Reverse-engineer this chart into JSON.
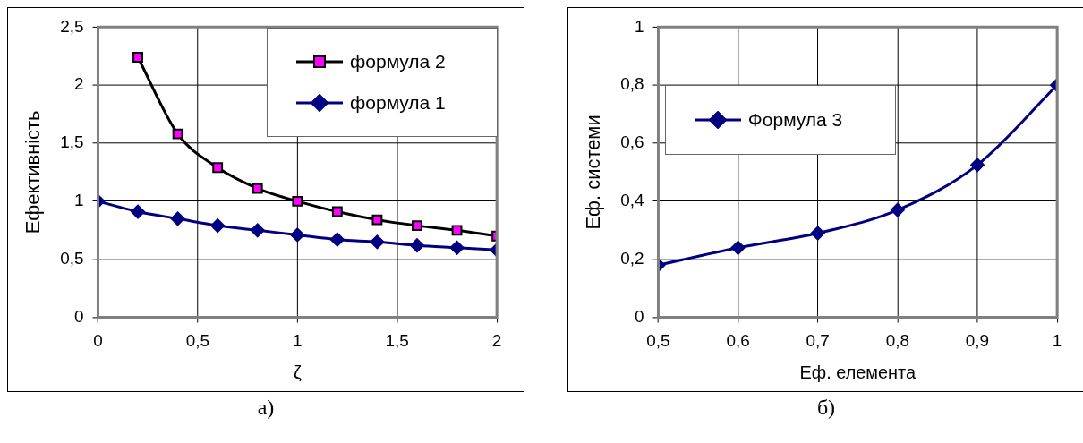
{
  "chart_data": [
    {
      "type": "line",
      "xlabel": "ζ",
      "ylabel": "Ефективність",
      "annotations": [
        "а)"
      ],
      "x": [
        0,
        0.2,
        0.4,
        0.6,
        0.8,
        1,
        1.2,
        1.4,
        1.6,
        1.8,
        2
      ],
      "series": [
        {
          "name": "формула 2",
          "color": "#000000",
          "colors": [
            null,
            "#ff00ff",
            "#ff00ff",
            "#ff00ff",
            "#ff00ff",
            "#ff00ff",
            "#ff00ff",
            "#ff00ff",
            "#ff00ff",
            "#ff00ff",
            "#ff00ff"
          ],
          "marker": "square",
          "values": [
            null,
            2.24,
            1.58,
            1.29,
            1.11,
            1.0,
            0.91,
            0.84,
            0.79,
            0.75,
            0.7
          ]
        },
        {
          "name": "формула 1",
          "color": "#000080",
          "marker": "diamond",
          "values": [
            1.0,
            0.91,
            0.85,
            0.79,
            0.75,
            0.71,
            0.67,
            0.65,
            0.62,
            0.6,
            0.58
          ]
        }
      ],
      "xlim": [
        0,
        2
      ],
      "xticks": [
        0,
        {
          "value": 0.5,
          "label": "0,5"
        },
        1,
        {
          "value": 1.5,
          "label": "1,5"
        },
        2
      ],
      "ylim": [
        0,
        2.5
      ],
      "yticks": [
        0,
        {
          "value": 0.5,
          "label": "0,5"
        },
        1,
        {
          "value": 1.5,
          "label": "1,5"
        },
        2,
        {
          "value": 2.5,
          "label": "2,5"
        }
      ],
      "grid": true,
      "legend": "top right",
      "line_style": "solid"
    },
    {
      "type": "line",
      "xlabel": "Еф. елемента",
      "ylabel": "Еф. системи",
      "annotations": [
        "б)"
      ],
      "x": [
        0.5,
        0.6,
        0.7,
        0.8,
        0.9,
        1
      ],
      "series": [
        {
          "name": "Формула 3",
          "color": "#000080",
          "marker": "diamond",
          "values": [
            0.18,
            0.24,
            0.29,
            0.37,
            0.525,
            0.8
          ]
        }
      ],
      "xlim": [
        0.5,
        1
      ],
      "xticks": [
        {
          "value": 0.5,
          "label": "0,5"
        },
        {
          "value": 0.6,
          "label": "0,6"
        },
        {
          "value": 0.7,
          "label": "0,7"
        },
        {
          "value": 0.8,
          "label": "0,8"
        },
        {
          "value": 0.9,
          "label": "0,9"
        },
        1
      ],
      "ylim": [
        0,
        1
      ],
      "yticks": [
        0,
        {
          "value": 0.2,
          "label": "0,2"
        },
        {
          "value": 0.4,
          "label": "0,4"
        },
        {
          "value": 0.6,
          "label": "0,6"
        },
        {
          "value": 0.8,
          "label": "0,8"
        },
        1
      ],
      "grid": true,
      "legend": "top left",
      "line_style": "solid"
    }
  ]
}
